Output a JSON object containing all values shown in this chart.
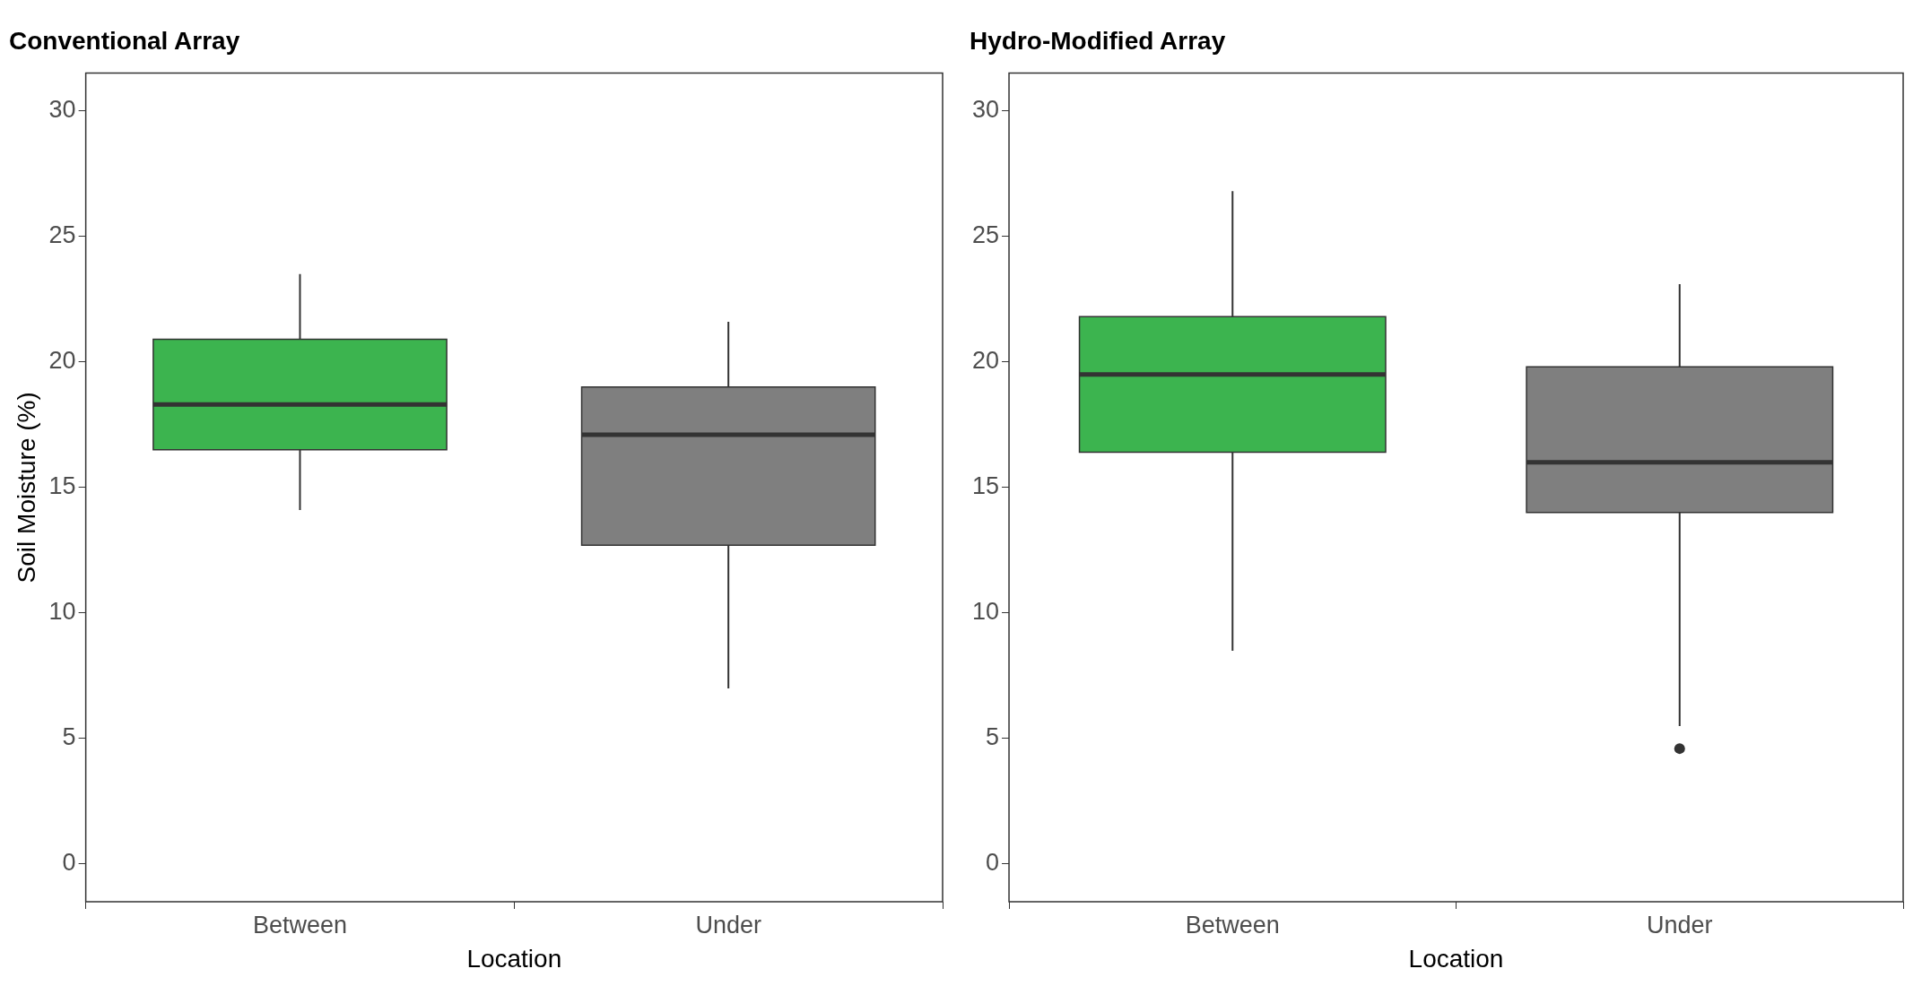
{
  "chart_data": [
    {
      "type": "box",
      "title": "Conventional Array",
      "xlabel": "Location",
      "ylabel": "Soil Moisture (%)",
      "categories": [
        "Between",
        "Under"
      ],
      "colors": [
        "#3cb44f",
        "#7f7f7f"
      ],
      "ylim": [
        -1.5,
        31.5
      ],
      "yticks": [
        0,
        5,
        10,
        15,
        20,
        25,
        30
      ],
      "boxes": [
        {
          "low": 14.1,
          "q1": 16.5,
          "median": 18.3,
          "q3": 20.9,
          "high": 23.5
        },
        {
          "low": 7.0,
          "q1": 12.7,
          "median": 17.1,
          "q3": 19.0,
          "high": 21.6
        }
      ]
    },
    {
      "type": "box",
      "title": "Hydro-Modified Array",
      "xlabel": "Location",
      "categories": [
        "Between",
        "Under"
      ],
      "colors": [
        "#3cb44f",
        "#7f7f7f"
      ],
      "ylim": [
        -1.5,
        31.5
      ],
      "yticks": [
        0,
        5,
        10,
        15,
        20,
        25,
        30
      ],
      "boxes": [
        {
          "low": 8.5,
          "q1": 16.4,
          "median": 19.5,
          "q3": 21.8,
          "high": 26.8
        },
        {
          "low": 5.5,
          "q1": 14.0,
          "median": 16.0,
          "q3": 19.8,
          "high": 23.1,
          "outliers": [
            4.6
          ]
        }
      ]
    }
  ]
}
